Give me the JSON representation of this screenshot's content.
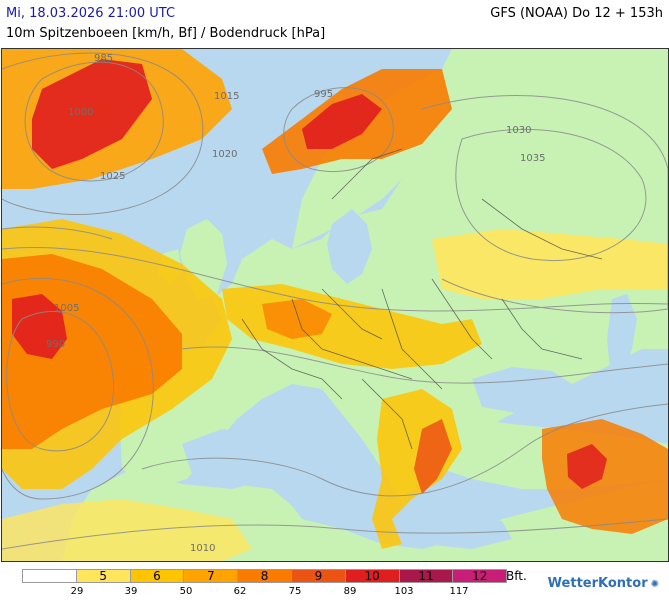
{
  "header": {
    "date": "Mi, 18.03.2026 21:00 UTC",
    "model": "GFS (NOAA) Do 12 + 153h",
    "title": "10m Spitzenboeen [km/h, Bf] / Bodendruck [hPa]"
  },
  "colors": {
    "sea": "#b8d8ef",
    "land_calm": "#c8f2b4",
    "bf5": "#ffe55c",
    "bf6": "#ffc400",
    "bf7": "#ffa300",
    "bf8": "#f97c00",
    "bf9": "#ec5414",
    "bf10": "#e01e1e",
    "bf11": "#a8184a",
    "bf12": "#c81e78"
  },
  "isobars": [
    {
      "name": "isobar-label-985",
      "text": "985"
    },
    {
      "name": "isobar-label-990",
      "text": "990"
    },
    {
      "name": "isobar-label-995",
      "text": "995"
    },
    {
      "name": "isobar-label-1000",
      "text": "1000"
    },
    {
      "name": "isobar-label-1005",
      "text": "1005"
    },
    {
      "name": "isobar-label-1010",
      "text": "1010"
    },
    {
      "name": "isobar-label-1015",
      "text": "1015"
    },
    {
      "name": "isobar-label-1020",
      "text": "1020"
    },
    {
      "name": "isobar-label-1025",
      "text": "1025"
    },
    {
      "name": "isobar-label-1030",
      "text": "1030"
    },
    {
      "name": "isobar-label-1035",
      "text": "1035"
    }
  ],
  "legend": {
    "unit": "Bft.",
    "swatches": [
      {
        "name": "legend-swatch-calm",
        "label": "",
        "color": "#ffffff"
      },
      {
        "name": "legend-swatch-bf5",
        "label": "5",
        "color": "#ffe55c"
      },
      {
        "name": "legend-swatch-bf6",
        "label": "6",
        "color": "#ffc400"
      },
      {
        "name": "legend-swatch-bf7",
        "label": "7",
        "color": "#ffa300"
      },
      {
        "name": "legend-swatch-bf8",
        "label": "8",
        "color": "#f97c00"
      },
      {
        "name": "legend-swatch-bf9",
        "label": "9",
        "color": "#ec5414"
      },
      {
        "name": "legend-swatch-bf10",
        "label": "10",
        "color": "#e01e1e"
      },
      {
        "name": "legend-swatch-bf11",
        "label": "11",
        "color": "#a8184a"
      },
      {
        "name": "legend-swatch-bf12",
        "label": "12",
        "color": "#c81e78"
      }
    ],
    "ticks": [
      "29",
      "39",
      "50",
      "62",
      "75",
      "89",
      "103",
      "117"
    ]
  },
  "brand": {
    "name": "WetterKontor",
    "icon": "sun-rays-icon"
  }
}
